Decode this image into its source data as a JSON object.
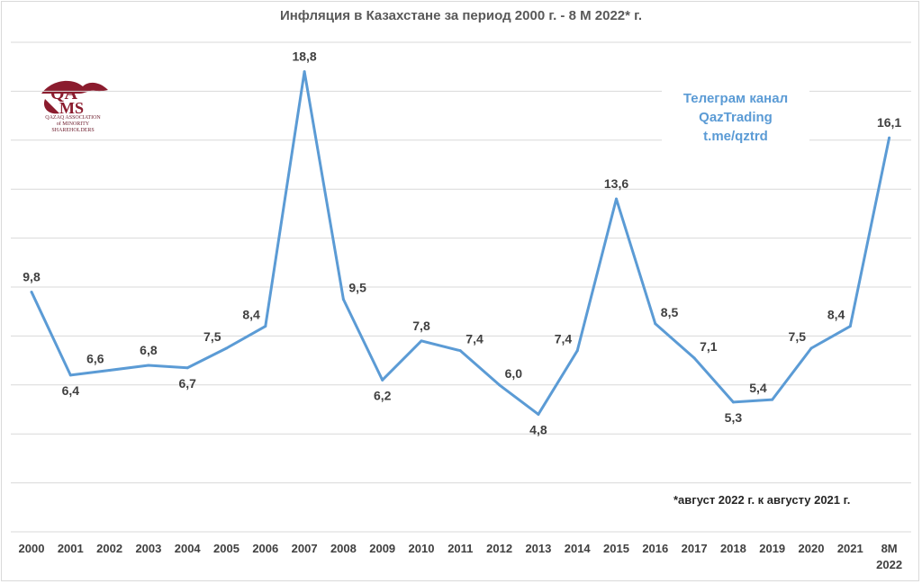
{
  "chart_data": {
    "type": "line",
    "title": "Инфляция в Казахстане за период 2000 г. - 8 М 2022* г.",
    "categories": [
      "2000",
      "2001",
      "2002",
      "2003",
      "2004",
      "2005",
      "2006",
      "2007",
      "2008",
      "2009",
      "2010",
      "2011",
      "2012",
      "2013",
      "2014",
      "2015",
      "2016",
      "2017",
      "2018",
      "2019",
      "2020",
      "2021",
      "8М 2022"
    ],
    "series": [
      {
        "values": [
          9.8,
          6.4,
          6.6,
          6.8,
          6.7,
          7.5,
          8.4,
          18.8,
          9.5,
          6.2,
          7.8,
          7.4,
          6.0,
          4.8,
          7.4,
          13.6,
          8.5,
          7.1,
          5.3,
          5.4,
          7.5,
          8.4,
          16.1
        ]
      }
    ],
    "data_labels": [
      "9,8",
      "6,4",
      "6,6",
      "6,8",
      "6,7",
      "7,5",
      "8,4",
      "18,8",
      "9,5",
      "6,2",
      "7,8",
      "7,4",
      "6,0",
      "4,8",
      "7,4",
      "13,6",
      "8,5",
      "7,1",
      "5,3",
      "5,4",
      "7,5",
      "8,4",
      "16,1"
    ],
    "ylim": [
      0,
      20
    ],
    "grid": true,
    "y_axis_labels_visible": false,
    "color": "#5b9bd5"
  },
  "promo": {
    "line1": "Телеграм канал",
    "line2": "QazTrading",
    "line3": "t.me/qztrd"
  },
  "footnote": "*август 2022 г. к августу 2021 г.",
  "logo": {
    "text_line1": "QAZAQ ASSOCIATION",
    "text_line2": "of MINORITY",
    "text_line3": "SHAREHOLDERS",
    "color": "#8b1c2e"
  }
}
